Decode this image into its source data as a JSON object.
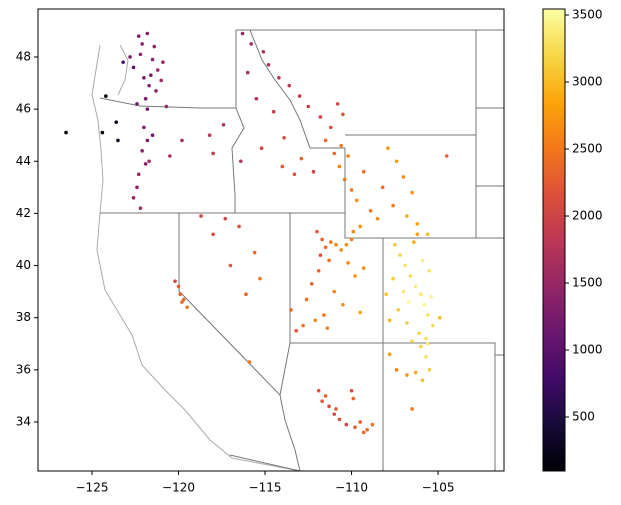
{
  "chart_data": {
    "type": "scatter",
    "xlim": [
      -128.12,
      -101.19
    ],
    "ylim": [
      32.12,
      49.84
    ],
    "xticks": [
      {
        "value": -125,
        "label": "−125"
      },
      {
        "value": -120,
        "label": "−120"
      },
      {
        "value": -115,
        "label": "−115"
      },
      {
        "value": -110,
        "label": "−110"
      },
      {
        "value": -105,
        "label": "−105"
      }
    ],
    "yticks": [
      34,
      36,
      38,
      40,
      42,
      44,
      46,
      48
    ],
    "colormap": "inferno",
    "clim": [
      97,
      3545
    ],
    "cticks": [
      500,
      1000,
      1500,
      2000,
      2500,
      3000,
      3500
    ],
    "x": [
      -122.3,
      -122.1,
      -121.8,
      -121.5,
      -121.2,
      -122.0,
      -121.7,
      -121.9,
      -122.4,
      -121.3,
      -120.9,
      -121.6,
      -122.2,
      -121.4,
      -122.6,
      -123.2,
      -121.0,
      -120.7,
      -122.8,
      -121.8,
      -126.5,
      -124.4,
      -124.2,
      -123.5,
      -123.6,
      -122.0,
      -121.8,
      -122.1,
      -121.9,
      -122.3,
      -122.6,
      -122.2,
      -121.7,
      -122.4,
      -121.5,
      -120.5,
      -119.8,
      -118.2,
      -118.0,
      -117.4,
      -116.3,
      -115.8,
      -115.1,
      -114.8,
      -114.2,
      -113.6,
      -113.0,
      -112.5,
      -111.8,
      -111.2,
      -110.8,
      -110.5,
      -115.5,
      -114.5,
      -116.0,
      -115.2,
      -113.9,
      -112.9,
      -111.5,
      -111.0,
      -116.4,
      -114.0,
      -113.3,
      -112.2,
      -110.6,
      -110.7,
      -110.4,
      -110.0,
      -109.7,
      -109.3,
      -108.9,
      -108.5,
      -107.9,
      -107.4,
      -107.0,
      -106.5,
      -106.2,
      -109.9,
      -110.2,
      -109.5,
      -108.2,
      -107.6,
      -106.8,
      -105.6,
      -104.5,
      -107.5,
      -107.2,
      -106.9,
      -106.6,
      -106.3,
      -106.0,
      -105.8,
      -105.6,
      -105.3,
      -106.1,
      -106.8,
      -107.8,
      -107.0,
      -106.4,
      -105.9,
      -105.5,
      -106.7,
      -107.3,
      -105.7,
      -106.2,
      -108.0,
      -107.6,
      -105.4,
      -106.5,
      -104.9,
      -112.0,
      -111.7,
      -111.5,
      -111.2,
      -110.9,
      -110.6,
      -110.3,
      -110.0,
      -111.3,
      -111.9,
      -112.3,
      -112.6,
      -111.0,
      -110.5,
      -109.5,
      -109.8,
      -111.6,
      -112.8,
      -113.2,
      -111.4,
      -110.2,
      -109.3,
      -112.1,
      -113.5,
      -111.8,
      -120.2,
      -120.0,
      -119.9,
      -119.7,
      -119.5,
      -119.8,
      -118.0,
      -117.3,
      -116.5,
      -115.6,
      -115.3,
      -116.1,
      -117.0,
      -118.7,
      -115.9,
      -111.9,
      -111.5,
      -111.3,
      -111.0,
      -110.7,
      -110.3,
      -109.8,
      -109.5,
      -109.1,
      -110.0,
      -109.3,
      -108.8,
      -111.7,
      -110.9,
      -109.9,
      -106.0,
      -105.7,
      -105.5,
      -105.9,
      -106.3,
      -106.8,
      -107.4,
      -107.8,
      -106.5,
      -105.6
    ],
    "values": [
      48.8,
      48.5,
      48.9,
      47.9,
      47.5,
      47.2,
      46.9,
      46.4,
      46.2,
      46.7,
      47.8,
      47.3,
      48.1,
      48.4,
      47.6,
      47.8,
      47.1,
      46.1,
      48.0,
      46.0,
      45.1,
      45.1,
      46.5,
      44.8,
      45.5,
      45.3,
      44.8,
      44.4,
      43.9,
      43.5,
      42.6,
      42.2,
      44.0,
      43.0,
      45.0,
      44.2,
      44.8,
      45.0,
      44.3,
      45.4,
      48.9,
      48.5,
      48.2,
      47.7,
      47.2,
      46.9,
      46.5,
      46.1,
      45.7,
      45.3,
      46.2,
      45.8,
      46.4,
      45.9,
      47.4,
      44.5,
      44.9,
      44.1,
      44.8,
      44.3,
      44.0,
      43.8,
      43.5,
      43.6,
      44.6,
      43.8,
      43.3,
      42.9,
      42.5,
      43.6,
      42.1,
      41.8,
      44.5,
      44.0,
      43.4,
      42.8,
      41.6,
      41.3,
      44.2,
      41.5,
      43.0,
      42.3,
      41.9,
      41.2,
      44.2,
      40.8,
      40.4,
      40.0,
      39.6,
      39.2,
      38.9,
      38.5,
      38.1,
      37.7,
      37.4,
      37.8,
      37.9,
      39.0,
      40.9,
      40.2,
      39.8,
      38.6,
      38.3,
      37.2,
      41.2,
      38.9,
      39.5,
      38.8,
      37.1,
      38.0,
      41.3,
      41.0,
      40.7,
      40.9,
      40.8,
      40.6,
      40.8,
      41.0,
      40.2,
      39.8,
      39.3,
      38.7,
      39.0,
      38.5,
      38.2,
      39.6,
      38.1,
      37.7,
      37.5,
      37.6,
      40.1,
      39.9,
      37.9,
      38.3,
      40.4,
      39.4,
      39.2,
      38.9,
      38.7,
      38.4,
      38.6,
      41.2,
      41.8,
      41.5,
      40.5,
      39.5,
      38.9,
      40.0,
      41.9,
      36.3,
      35.2,
      35.0,
      34.6,
      34.3,
      34.1,
      33.9,
      33.8,
      34.0,
      33.7,
      35.2,
      33.6,
      33.9,
      34.8,
      34.5,
      34.9,
      36.9,
      36.5,
      36.0,
      35.6,
      35.9,
      35.8,
      36.0,
      36.6,
      34.5,
      37.0
    ],
    "color_values": [
      1300,
      1400,
      1350,
      1450,
      1500,
      1250,
      1400,
      1200,
      1150,
      1350,
      1500,
      1300,
      1400,
      1450,
      1000,
      900,
      1550,
      1500,
      1300,
      1100,
      100,
      150,
      200,
      350,
      300,
      1300,
      1250,
      1400,
      1350,
      1500,
      1450,
      1550,
      1600,
      1400,
      1200,
      1700,
      1650,
      1800,
      1900,
      1750,
      1500,
      1600,
      1700,
      1650,
      1800,
      1850,
      1900,
      1950,
      2000,
      2100,
      2050,
      2200,
      1750,
      1900,
      1600,
      2000,
      2100,
      2300,
      2350,
      2400,
      1800,
      2200,
      2150,
      2000,
      2500,
      2600,
      2500,
      2550,
      2700,
      2450,
      2500,
      2650,
      2750,
      2800,
      2650,
      2700,
      2850,
      2600,
      2550,
      2750,
      2400,
      2500,
      2900,
      2950,
      2300,
      3100,
      3200,
      3300,
      3250,
      3400,
      3350,
      3450,
      3300,
      3250,
      3200,
      3150,
      3000,
      3350,
      2900,
      3400,
      3300,
      3500,
      3100,
      3250,
      2800,
      3050,
      3150,
      3450,
      3200,
      3000,
      2200,
      2300,
      2400,
      2500,
      2600,
      2650,
      2700,
      2550,
      2450,
      2350,
      2300,
      2400,
      2600,
      2700,
      2800,
      2750,
      2500,
      2450,
      2200,
      2550,
      2650,
      2700,
      2600,
      2300,
      2150,
      2100,
      2200,
      2300,
      2400,
      2500,
      2350,
      2100,
      2000,
      2150,
      2400,
      2500,
      2300,
      2200,
      2000,
      2450,
      2200,
      2300,
      2100,
      2050,
      2150,
      2000,
      2250,
      2300,
      2400,
      2100,
      2350,
      2450,
      2200,
      2250,
      2350,
      3200,
      3300,
      3150,
      3000,
      2900,
      2700,
      2600,
      2800,
      2500,
      3350
    ]
  }
}
